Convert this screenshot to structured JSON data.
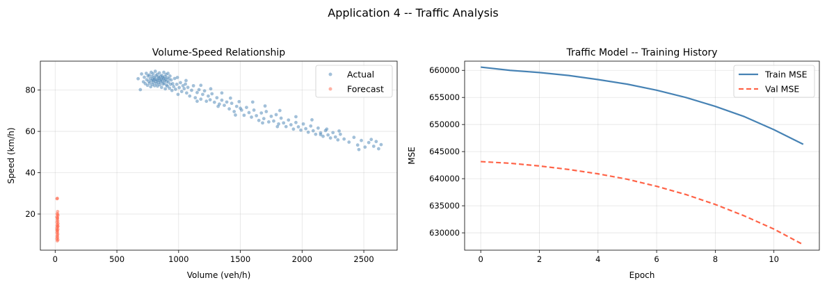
{
  "figure": {
    "suptitle": "Application 4 -- Traffic Analysis"
  },
  "chart_data": [
    {
      "type": "scatter",
      "title": "Volume-Speed Relationship",
      "xlabel": "Volume (veh/h)",
      "ylabel": "Speed (km/h)",
      "xlim": [
        -120,
        2770
      ],
      "ylim": [
        2.5,
        94
      ],
      "xticks": [
        0,
        500,
        1000,
        1500,
        2000,
        2500
      ],
      "yticks": [
        20,
        40,
        60,
        80
      ],
      "grid": true,
      "legend": "top-right",
      "series": [
        {
          "name": "Actual",
          "color": "#4682B4",
          "alpha": 0.5,
          "points": [
            [
              672,
              85.5
            ],
            [
              690,
              80.2
            ],
            [
              700,
              87.8
            ],
            [
              715,
              84.0
            ],
            [
              722,
              86.2
            ],
            [
              730,
              83.1
            ],
            [
              738,
              88.1
            ],
            [
              742,
              85.0
            ],
            [
              748,
              82.3
            ],
            [
              752,
              86.8
            ],
            [
              758,
              84.2
            ],
            [
              762,
              87.3
            ],
            [
              766,
              83.3
            ],
            [
              770,
              85.6
            ],
            [
              774,
              81.6
            ],
            [
              778,
              88.6
            ],
            [
              781,
              84.5
            ],
            [
              784,
              86.6
            ],
            [
              787,
              82.7
            ],
            [
              790,
              85.2
            ],
            [
              793,
              87.9
            ],
            [
              796,
              83.7
            ],
            [
              799,
              84.8
            ],
            [
              802,
              86.2
            ],
            [
              805,
              82.1
            ],
            [
              808,
              85.4
            ],
            [
              811,
              89.1
            ],
            [
              814,
              84.1
            ],
            [
              817,
              86.9
            ],
            [
              820,
              83.1
            ],
            [
              823,
              85.0
            ],
            [
              826,
              87.6
            ],
            [
              829,
              81.9
            ],
            [
              832,
              84.6
            ],
            [
              835,
              86.3
            ],
            [
              838,
              83.6
            ],
            [
              841,
              85.8
            ],
            [
              844,
              88.3
            ],
            [
              847,
              82.6
            ],
            [
              850,
              84.9
            ],
            [
              853,
              86.7
            ],
            [
              856,
              83.9
            ],
            [
              859,
              85.3
            ],
            [
              862,
              81.3
            ],
            [
              865,
              87.1
            ],
            [
              868,
              84.3
            ],
            [
              871,
              86.1
            ],
            [
              874,
              82.9
            ],
            [
              877,
              85.7
            ],
            [
              880,
              88.6
            ],
            [
              883,
              83.3
            ],
            [
              886,
              84.7
            ],
            [
              889,
              86.5
            ],
            [
              892,
              80.6
            ],
            [
              895,
              85.1
            ],
            [
              898,
              87.6
            ],
            [
              901,
              82.4
            ],
            [
              904,
              84.2
            ],
            [
              907,
              86.0
            ],
            [
              910,
              81.9
            ],
            [
              914,
              88.1
            ],
            [
              918,
              83.8
            ],
            [
              922,
              85.4
            ],
            [
              926,
              80.9
            ],
            [
              930,
              86.8
            ],
            [
              935,
              82.8
            ],
            [
              940,
              84.9
            ],
            [
              946,
              79.8
            ],
            [
              952,
              83.1
            ],
            [
              960,
              81.7
            ],
            [
              968,
              85.6
            ],
            [
              975,
              80.4
            ],
            [
              985,
              82.8
            ],
            [
              995,
              77.9
            ],
            [
              1005,
              81.2
            ],
            [
              1015,
              83.6
            ],
            [
              1025,
              79.3
            ],
            [
              1035,
              82.1
            ],
            [
              1045,
              80.7
            ],
            [
              1055,
              82.9
            ],
            [
              1065,
              78.6
            ],
            [
              1075,
              81.3
            ],
            [
              1090,
              77.1
            ],
            [
              1105,
              79.9
            ],
            [
              1120,
              82.1
            ],
            [
              1135,
              76.3
            ],
            [
              1150,
              78.8
            ],
            [
              1165,
              80.2
            ],
            [
              1180,
              75.6
            ],
            [
              1195,
              77.9
            ],
            [
              1210,
              79.6
            ],
            [
              1225,
              74.6
            ],
            [
              1240,
              77.1
            ],
            [
              1255,
              75.3
            ],
            [
              1270,
              78.2
            ],
            [
              1290,
              74.1
            ],
            [
              1310,
              76.3
            ],
            [
              1330,
              73.2
            ],
            [
              1350,
              75.1
            ],
            [
              1370,
              72.6
            ],
            [
              1390,
              74.2
            ],
            [
              1410,
              70.9
            ],
            [
              1430,
              73.6
            ],
            [
              1450,
              69.6
            ],
            [
              1470,
              72.1
            ],
            [
              1490,
              74.4
            ],
            [
              1510,
              70.3
            ],
            [
              1530,
              67.8
            ],
            [
              1550,
              71.6
            ],
            [
              1570,
              69.1
            ],
            [
              1590,
              66.9
            ],
            [
              1610,
              70.3
            ],
            [
              1630,
              67.6
            ],
            [
              1650,
              65.3
            ],
            [
              1670,
              68.9
            ],
            [
              1690,
              66.2
            ],
            [
              1710,
              69.6
            ],
            [
              1730,
              64.6
            ],
            [
              1750,
              67.3
            ],
            [
              1770,
              65.0
            ],
            [
              1790,
              68.1
            ],
            [
              1810,
              63.6
            ],
            [
              1830,
              66.4
            ],
            [
              1850,
              64.1
            ],
            [
              1870,
              62.3
            ],
            [
              1890,
              65.5
            ],
            [
              1910,
              63.2
            ],
            [
              1930,
              61.1
            ],
            [
              1950,
              64.3
            ],
            [
              1970,
              62.2
            ],
            [
              1990,
              60.6
            ],
            [
              2010,
              63.6
            ],
            [
              2030,
              61.3
            ],
            [
              2050,
              59.6
            ],
            [
              2070,
              62.6
            ],
            [
              2090,
              60.3
            ],
            [
              2110,
              58.6
            ],
            [
              2130,
              61.6
            ],
            [
              2150,
              59.3
            ],
            [
              2170,
              57.6
            ],
            [
              2190,
              60.4
            ],
            [
              2210,
              58.3
            ],
            [
              2230,
              56.8
            ],
            [
              2250,
              59.4
            ],
            [
              2270,
              57.3
            ],
            [
              2290,
              55.9
            ],
            [
              2310,
              58.6
            ],
            [
              2340,
              56.3
            ],
            [
              2380,
              54.8
            ],
            [
              2420,
              57.1
            ],
            [
              2450,
              53.4
            ],
            [
              2480,
              55.6
            ],
            [
              2510,
              52.4
            ],
            [
              2540,
              54.6
            ],
            [
              2560,
              56.1
            ],
            [
              2580,
              52.8
            ],
            [
              2600,
              55.1
            ],
            [
              2620,
              51.6
            ],
            [
              2640,
              53.6
            ],
            [
              1260,
              80.6
            ],
            [
              1180,
              82.3
            ],
            [
              1420,
              76.1
            ],
            [
              1600,
              74.2
            ],
            [
              1950,
              67.1
            ],
            [
              2080,
              65.6
            ],
            [
              2200,
              61.1
            ],
            [
              1350,
              78.6
            ],
            [
              1700,
              72.3
            ],
            [
              1820,
              70.1
            ],
            [
              2460,
              51.2
            ],
            [
              1060,
              84.6
            ],
            [
              990,
              86.1
            ],
            [
              1500,
              71.2
            ],
            [
              2300,
              60.2
            ],
            [
              1150,
              74.6
            ],
            [
              1800,
              62.3
            ],
            [
              2150,
              58.4
            ],
            [
              1680,
              64.1
            ],
            [
              1460,
              67.9
            ],
            [
              1320,
              72.1
            ]
          ]
        },
        {
          "name": "Forecast",
          "color": "#FF6347",
          "alpha": 0.5,
          "points": [
            [
              15,
              27.4
            ],
            [
              18,
              27.6
            ],
            [
              20,
              21.2
            ],
            [
              16,
              20.1
            ],
            [
              22,
              19.3
            ],
            [
              14,
              18.6
            ],
            [
              19,
              17.9
            ],
            [
              17,
              17.2
            ],
            [
              21,
              16.6
            ],
            [
              15,
              16.0
            ],
            [
              23,
              15.4
            ],
            [
              18,
              14.9
            ],
            [
              16,
              14.3
            ],
            [
              20,
              13.8
            ],
            [
              14,
              13.2
            ],
            [
              22,
              12.6
            ],
            [
              17,
              12.0
            ],
            [
              19,
              11.4
            ],
            [
              15,
              10.9
            ],
            [
              21,
              10.3
            ],
            [
              18,
              9.7
            ],
            [
              16,
              9.1
            ],
            [
              20,
              8.6
            ],
            [
              14,
              8.0
            ],
            [
              22,
              7.5
            ],
            [
              17,
              7.0
            ],
            [
              19,
              18.2
            ],
            [
              23,
              14.1
            ],
            [
              15,
              12.3
            ],
            [
              21,
              19.8
            ]
          ]
        }
      ]
    },
    {
      "type": "line",
      "title": "Traffic Model -- Training History",
      "xlabel": "Epoch",
      "ylabel": "MSE",
      "xlim": [
        -0.55,
        11.55
      ],
      "ylim": [
        626800,
        661700
      ],
      "xticks": [
        0,
        2,
        4,
        6,
        8,
        10
      ],
      "yticks": [
        630000,
        635000,
        640000,
        645000,
        650000,
        655000,
        660000
      ],
      "grid": true,
      "legend": "top-right",
      "x": [
        0,
        1,
        2,
        3,
        4,
        5,
        6,
        7,
        8,
        9,
        10,
        11
      ],
      "series": [
        {
          "name": "Train MSE",
          "color": "#4682B4",
          "style": "solid",
          "values": [
            660600,
            660000,
            659600,
            659050,
            658300,
            657450,
            656330,
            654990,
            653350,
            651440,
            649050,
            646350
          ]
        },
        {
          "name": "Val MSE",
          "color": "#FF6347",
          "style": "dashed",
          "values": [
            643150,
            642850,
            642350,
            641700,
            640900,
            639890,
            638590,
            637070,
            635240,
            633110,
            630690,
            627820
          ]
        }
      ]
    }
  ]
}
